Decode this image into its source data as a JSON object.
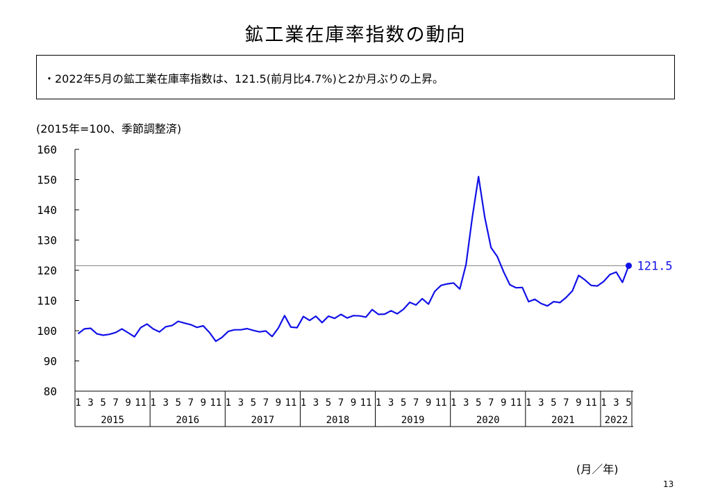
{
  "title": "鉱工業在庫率指数の動向",
  "summary": "・2022年5月の鉱工業在庫率指数は、121.5(前月比4.7%)と2か月ぶりの上昇。",
  "unit_note": "(2015年=100、季節調整済)",
  "x_axis_unit": "(月／年)",
  "page_number": "13",
  "colors": {
    "line": "#1010e8",
    "axis": "#000000",
    "reference": "#888888"
  },
  "chart_data": {
    "type": "line",
    "title": "",
    "xlabel": "",
    "ylabel": "",
    "ylim": [
      80,
      160
    ],
    "yticks": [
      80,
      90,
      100,
      110,
      120,
      130,
      140,
      150,
      160
    ],
    "month_ticks": [
      "1",
      "3",
      "5",
      "7",
      "9",
      "11"
    ],
    "years": [
      "2015",
      "2016",
      "2017",
      "2018",
      "2019",
      "2020",
      "2021",
      "2022"
    ],
    "x_start": "2015-01",
    "x_end": "2022-05",
    "grid": false,
    "reference_value": 121.5,
    "last_point_label": "121.5",
    "series": [
      {
        "values": [
          99.0,
          100.6,
          100.8,
          99.0,
          98.5,
          98.8,
          99.4,
          100.6,
          99.3,
          98.0,
          101.0,
          102.2,
          100.6,
          99.6,
          101.3,
          101.7,
          103.1,
          102.5,
          102.0,
          101.1,
          101.6,
          99.4,
          96.5,
          97.8,
          99.8,
          100.3,
          100.3,
          100.7,
          100.1,
          99.6,
          99.9,
          98.1,
          100.9,
          105.0,
          101.2,
          101.0,
          104.7,
          103.4,
          104.8,
          102.7,
          104.8,
          104.1,
          105.4,
          104.2,
          105.0,
          104.9,
          104.5,
          107.0,
          105.4,
          105.5,
          106.6,
          105.6,
          107.1,
          109.4,
          108.5,
          110.6,
          108.8,
          113.0,
          115.0,
          115.5,
          115.8,
          113.8,
          121.9,
          137.5,
          151.0,
          137.5,
          127.5,
          124.5,
          119.5,
          115.2,
          114.2,
          114.3,
          109.6,
          110.4,
          109.0,
          108.2,
          109.6,
          109.3,
          111.0,
          113.2,
          118.3,
          116.8,
          115.0,
          114.8,
          116.3,
          118.6,
          119.4,
          116.0,
          121.5
        ]
      }
    ]
  }
}
